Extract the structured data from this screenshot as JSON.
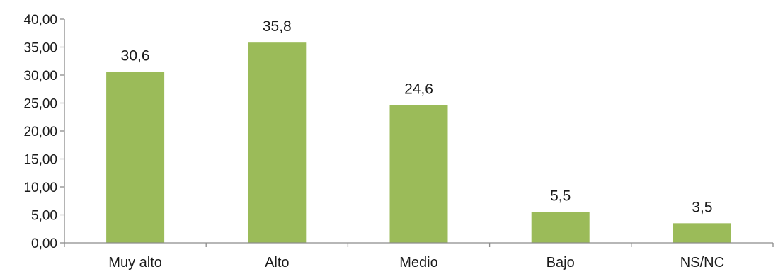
{
  "chart_data": {
    "type": "bar",
    "title": "",
    "xlabel": "",
    "ylabel": "",
    "categories": [
      "Muy alto",
      "Alto",
      "Medio",
      "Bajo",
      "NS/NC"
    ],
    "values": [
      30.6,
      35.8,
      24.6,
      5.5,
      3.5
    ],
    "value_labels": [
      "30,6",
      "35,8",
      "24,6",
      "5,5",
      "3,5"
    ],
    "ylim": [
      0,
      40
    ],
    "yticks": [
      0,
      5,
      10,
      15,
      20,
      25,
      30,
      35,
      40
    ],
    "ytick_labels": [
      "0,00",
      "5,00",
      "10,00",
      "15,00",
      "20,00",
      "25,00",
      "30,00",
      "35,00",
      "40,00"
    ],
    "grid": false,
    "legend": "none",
    "bar_color": "#9BBB59",
    "axis_color": "#8C8C8C"
  }
}
